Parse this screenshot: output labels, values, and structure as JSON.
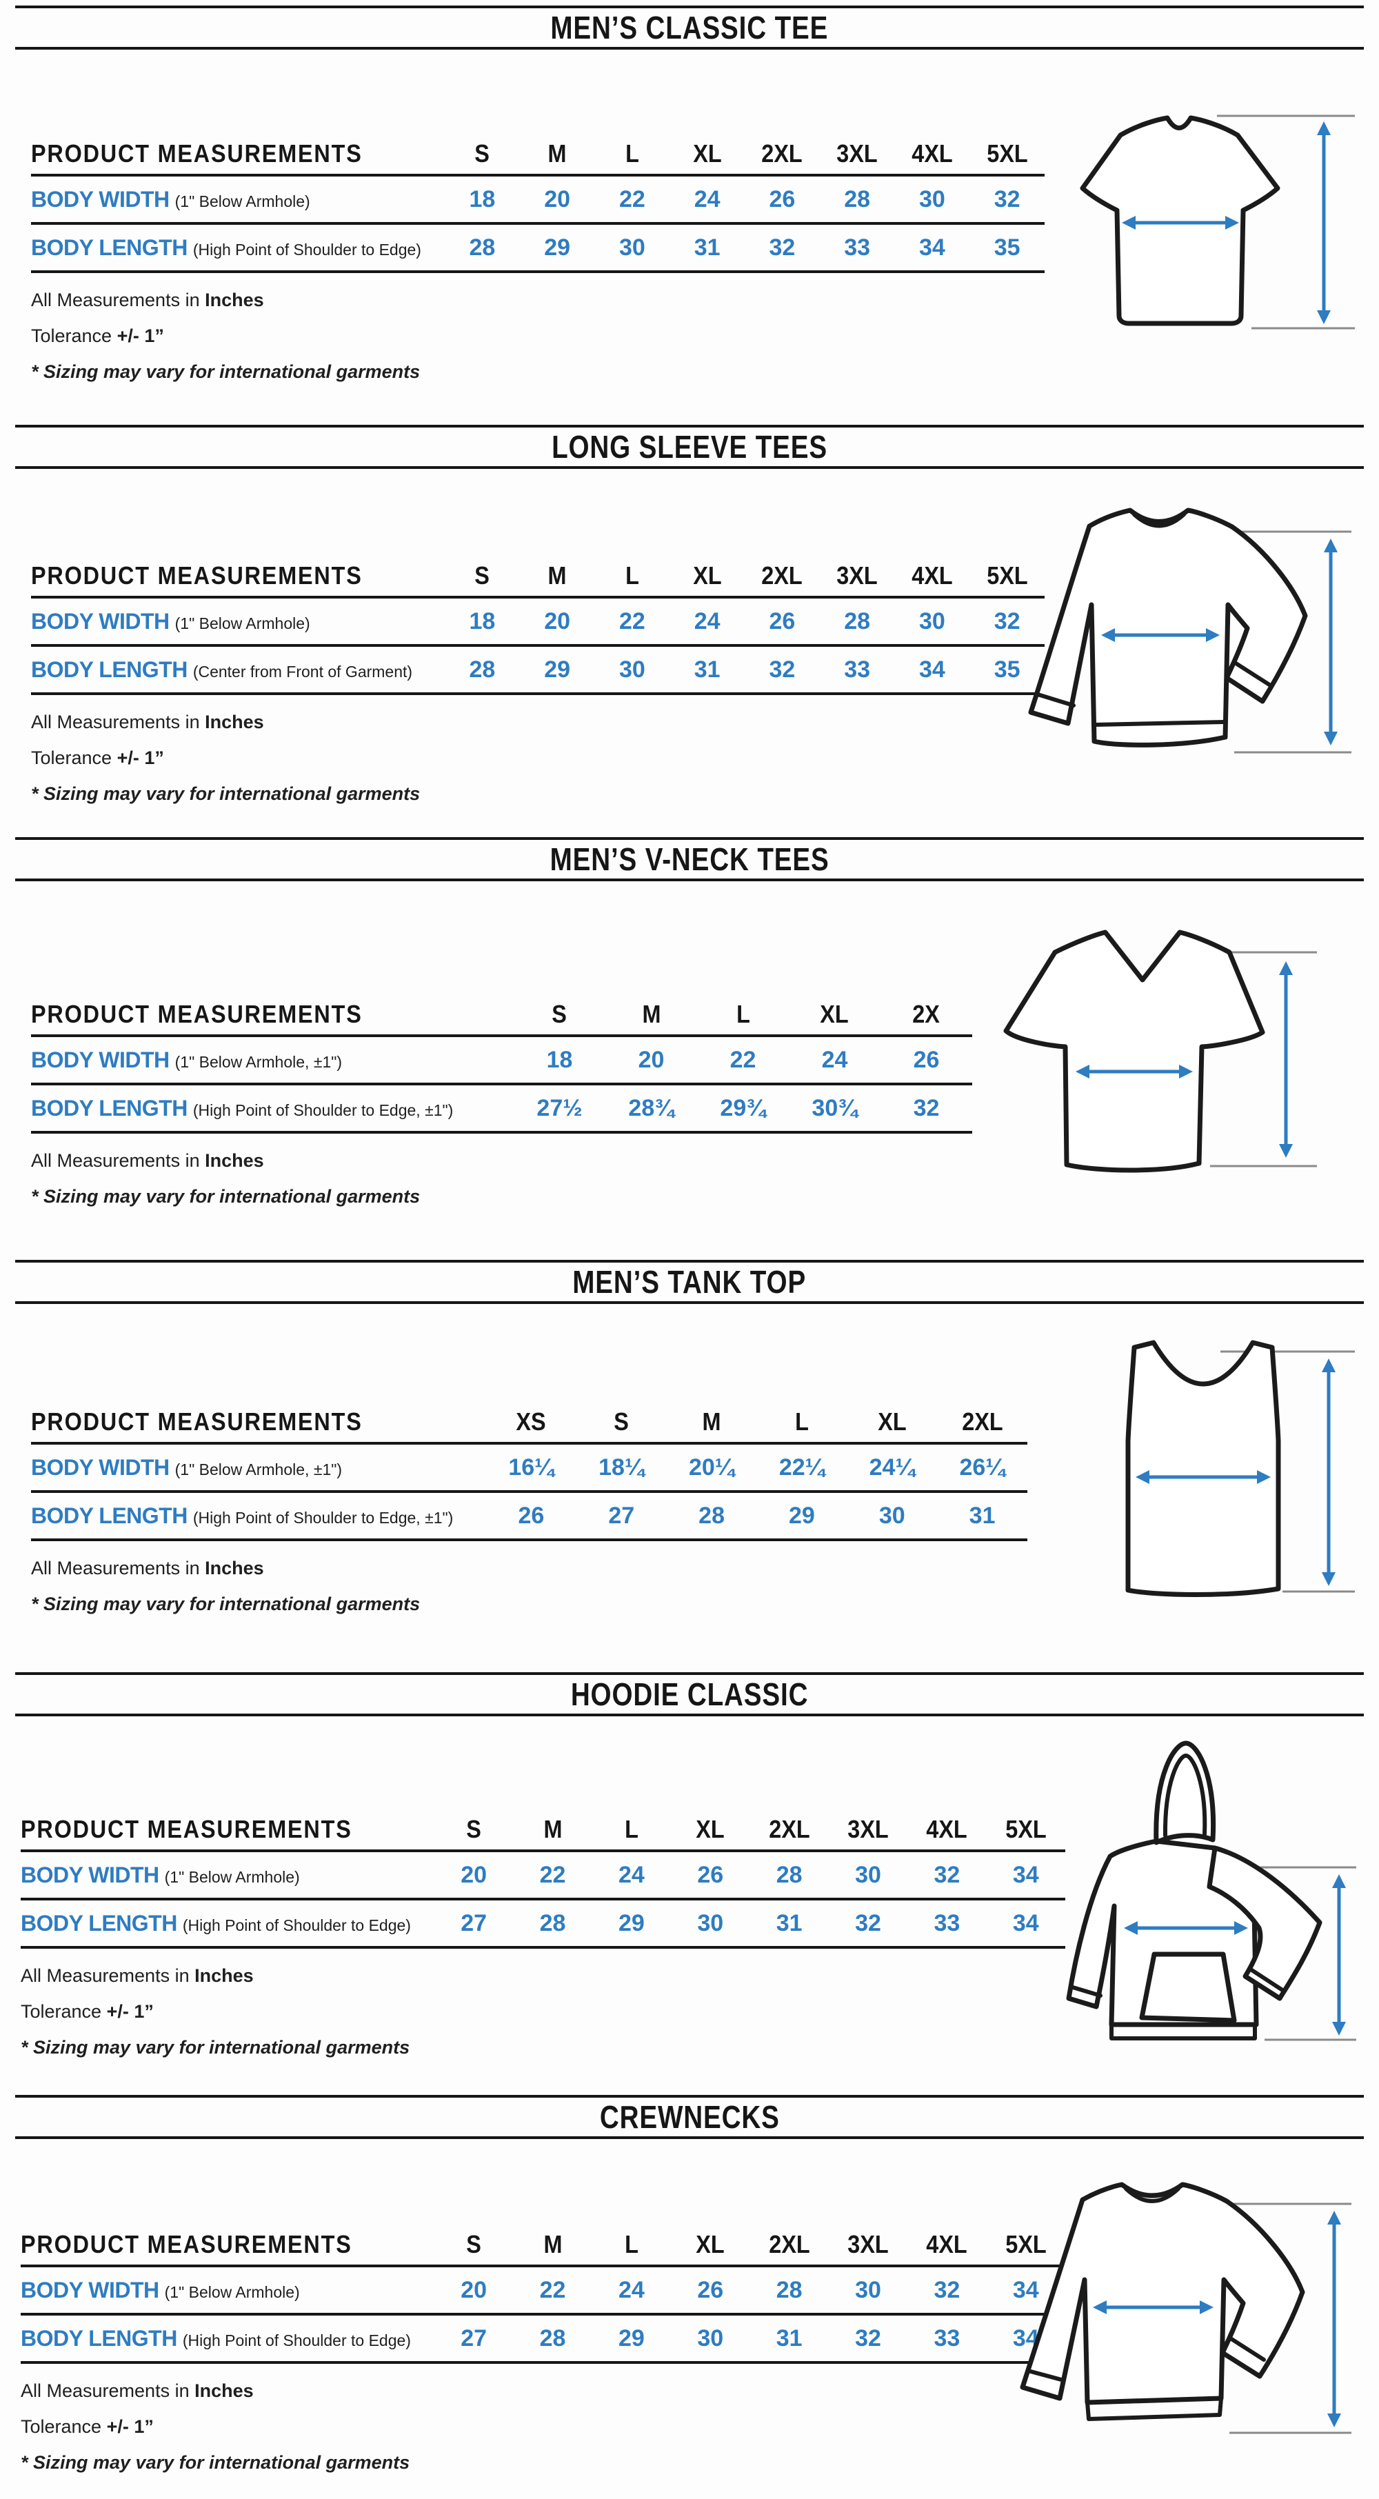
{
  "colors": {
    "accent_blue": "#2e7cc1",
    "ink": "#1f1f1f",
    "rule_gray": "#8a8a8a"
  },
  "sections": [
    {
      "title": "MEN’S CLASSIC TEE",
      "illustration": "classic-tee-diagram",
      "table": {
        "header_label": "PRODUCT MEASUREMENTS",
        "sizes": [
          "S",
          "M",
          "L",
          "XL",
          "2XL",
          "3XL",
          "4XL",
          "5XL"
        ],
        "rows": [
          {
            "label": "BODY WIDTH",
            "note": "(1\" Below Armhole)",
            "values": [
              "18",
              "20",
              "22",
              "24",
              "26",
              "28",
              "30",
              "32"
            ]
          },
          {
            "label": "BODY LENGTH",
            "note": "(High Point of Shoulder to Edge)",
            "values": [
              "28",
              "29",
              "30",
              "31",
              "32",
              "33",
              "34",
              "35"
            ]
          }
        ]
      },
      "notes": [
        {
          "text": "All Measurements in ",
          "strong": "Inches",
          "italic": false
        },
        {
          "text": "Tolerance ",
          "strong": "+/- 1”",
          "italic": false
        },
        {
          "text": "* Sizing may vary for international garments",
          "strong": "",
          "italic": true
        }
      ]
    },
    {
      "title": "LONG SLEEVE TEES",
      "illustration": "long-sleeve-tee-diagram",
      "table": {
        "header_label": "PRODUCT MEASUREMENTS",
        "sizes": [
          "S",
          "M",
          "L",
          "XL",
          "2XL",
          "3XL",
          "4XL",
          "5XL"
        ],
        "rows": [
          {
            "label": "BODY WIDTH",
            "note": "(1\" Below Armhole)",
            "values": [
              "18",
              "20",
              "22",
              "24",
              "26",
              "28",
              "30",
              "32"
            ]
          },
          {
            "label": "BODY LENGTH",
            "note": "(Center from Front of Garment)",
            "values": [
              "28",
              "29",
              "30",
              "31",
              "32",
              "33",
              "34",
              "35"
            ]
          }
        ]
      },
      "notes": [
        {
          "text": "All Measurements in ",
          "strong": "Inches",
          "italic": false
        },
        {
          "text": "Tolerance ",
          "strong": "+/- 1”",
          "italic": false
        },
        {
          "text": "* Sizing may vary for international garments",
          "strong": "",
          "italic": true
        }
      ]
    },
    {
      "title": "MEN’S V-NECK TEES",
      "illustration": "v-neck-tee-diagram",
      "table": {
        "header_label": "PRODUCT MEASUREMENTS",
        "sizes": [
          "S",
          "M",
          "L",
          "XL",
          "2X"
        ],
        "rows": [
          {
            "label": "BODY WIDTH",
            "note": "(1\" Below Armhole, ±1\")",
            "values": [
              "18",
              "20",
              "22",
              "24",
              "26"
            ]
          },
          {
            "label": "BODY LENGTH",
            "note": "(High Point of Shoulder to Edge, ±1\")",
            "values": [
              "27½",
              "28¾",
              "29¾",
              "30¾",
              "32"
            ]
          }
        ]
      },
      "notes": [
        {
          "text": "All Measurements in ",
          "strong": "Inches",
          "italic": false
        },
        {
          "text": "* Sizing may vary for international garments",
          "strong": "",
          "italic": true
        }
      ]
    },
    {
      "title": "MEN’S TANK TOP",
      "illustration": "tank-top-diagram",
      "table": {
        "header_label": "PRODUCT MEASUREMENTS",
        "sizes": [
          "XS",
          "S",
          "M",
          "L",
          "XL",
          "2XL"
        ],
        "rows": [
          {
            "label": "BODY WIDTH",
            "note": "(1\" Below Armhole, ±1\")",
            "values": [
              "16¼",
              "18¼",
              "20¼",
              "22¼",
              "24¼",
              "26¼"
            ]
          },
          {
            "label": "BODY LENGTH",
            "note": "(High Point of Shoulder to Edge, ±1\")",
            "values": [
              "26",
              "27",
              "28",
              "29",
              "30",
              "31"
            ]
          }
        ]
      },
      "notes": [
        {
          "text": "All Measurements in ",
          "strong": "Inches",
          "italic": false
        },
        {
          "text": "* Sizing may vary for international garments",
          "strong": "",
          "italic": true
        }
      ]
    },
    {
      "title": "HOODIE CLASSIC",
      "illustration": "hoodie-diagram",
      "table": {
        "header_label": "PRODUCT MEASUREMENTS",
        "sizes": [
          "S",
          "M",
          "L",
          "XL",
          "2XL",
          "3XL",
          "4XL",
          "5XL"
        ],
        "rows": [
          {
            "label": "BODY WIDTH",
            "note": "(1\" Below Armhole)",
            "values": [
              "20",
              "22",
              "24",
              "26",
              "28",
              "30",
              "32",
              "34"
            ]
          },
          {
            "label": "BODY LENGTH",
            "note": "(High Point of Shoulder to Edge)",
            "values": [
              "27",
              "28",
              "29",
              "30",
              "31",
              "32",
              "33",
              "34"
            ]
          }
        ]
      },
      "notes": [
        {
          "text": "All Measurements in ",
          "strong": "Inches",
          "italic": false
        },
        {
          "text": "Tolerance ",
          "strong": "+/- 1”",
          "italic": false
        },
        {
          "text": "* Sizing may vary for international garments",
          "strong": "",
          "italic": true
        }
      ]
    },
    {
      "title": "CREWNECKS",
      "illustration": "crewneck-diagram",
      "table": {
        "header_label": "PRODUCT MEASUREMENTS",
        "sizes": [
          "S",
          "M",
          "L",
          "XL",
          "2XL",
          "3XL",
          "4XL",
          "5XL"
        ],
        "rows": [
          {
            "label": "BODY WIDTH",
            "note": "(1\" Below Armhole)",
            "values": [
              "20",
              "22",
              "24",
              "26",
              "28",
              "30",
              "32",
              "34"
            ]
          },
          {
            "label": "BODY LENGTH",
            "note": "(High Point of Shoulder to Edge)",
            "values": [
              "27",
              "28",
              "29",
              "30",
              "31",
              "32",
              "33",
              "34"
            ]
          }
        ]
      },
      "notes": [
        {
          "text": "All Measurements in ",
          "strong": "Inches",
          "italic": false
        },
        {
          "text": "Tolerance ",
          "strong": "+/- 1”",
          "italic": false
        },
        {
          "text": "* Sizing may vary for international garments",
          "strong": "",
          "italic": true
        }
      ]
    }
  ]
}
